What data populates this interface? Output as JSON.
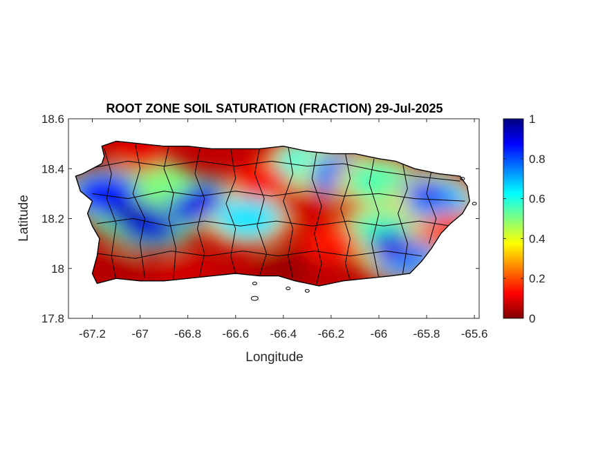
{
  "chart_data": {
    "type": "heatmap",
    "title": "ROOT ZONE SOIL SATURATION (FRACTION) 29-Jul-2025",
    "xlabel": "Longitude",
    "ylabel": "Latitude",
    "xlim": [
      -67.3,
      -65.58
    ],
    "ylim": [
      17.8,
      18.6
    ],
    "xticks": [
      -67.2,
      -67,
      -66.8,
      -66.6,
      -66.4,
      -66.2,
      -66,
      -65.8,
      -65.6
    ],
    "xtick_labels": [
      "-67.2",
      "-67",
      "-66.8",
      "-66.6",
      "-66.4",
      "-66.2",
      "-66",
      "-65.8",
      "-65.6"
    ],
    "yticks": [
      17.8,
      18,
      18.2,
      18.4,
      18.6
    ],
    "ytick_labels": [
      "17.8",
      "18",
      "18.2",
      "18.4",
      "18.6"
    ],
    "colorbar": {
      "colormap": "jet",
      "range": [
        0,
        1
      ],
      "ticks": [
        0,
        0.2,
        0.4,
        0.6,
        0.8,
        1
      ],
      "tick_labels": [
        "0",
        "0.2",
        "0.4",
        "0.6",
        "0.8",
        "1"
      ],
      "colors": [
        "#800000",
        "#ff0000",
        "#ffff00",
        "#00ffff",
        "#0000ff",
        "#000080"
      ]
    },
    "grid": false,
    "region": "Puerto Rico",
    "saturation_regions": [
      {
        "lon": -67.05,
        "lat": 18.22,
        "value": 0.95
      },
      {
        "lon": -66.95,
        "lat": 18.18,
        "value": 0.92
      },
      {
        "lon": -67.15,
        "lat": 18.3,
        "value": 0.85
      },
      {
        "lon": -66.75,
        "lat": 18.26,
        "value": 0.9
      },
      {
        "lon": -66.55,
        "lat": 18.2,
        "value": 0.65
      },
      {
        "lon": -66.9,
        "lat": 18.35,
        "value": 0.5
      },
      {
        "lon": -66.3,
        "lat": 18.42,
        "value": 0.6
      },
      {
        "lon": -66.15,
        "lat": 18.38,
        "value": 0.75
      },
      {
        "lon": -66.0,
        "lat": 18.35,
        "value": 0.55
      },
      {
        "lon": -65.8,
        "lat": 18.3,
        "value": 0.88
      },
      {
        "lon": -65.75,
        "lat": 18.27,
        "value": 0.7
      },
      {
        "lon": -65.95,
        "lat": 18.1,
        "value": 0.9
      },
      {
        "lon": -65.9,
        "lat": 18.05,
        "value": 0.75
      },
      {
        "lon": -66.0,
        "lat": 18.15,
        "value": 0.55
      },
      {
        "lon": -67.1,
        "lat": 18.0,
        "value": 0.05
      },
      {
        "lon": -66.8,
        "lat": 17.98,
        "value": 0.08
      },
      {
        "lon": -66.4,
        "lat": 18.0,
        "value": 0.03
      },
      {
        "lon": -66.3,
        "lat": 18.25,
        "value": 0.08
      },
      {
        "lon": -66.5,
        "lat": 18.35,
        "value": 0.12
      },
      {
        "lon": -67.0,
        "lat": 18.46,
        "value": 0.1
      },
      {
        "lon": -66.2,
        "lat": 18.1,
        "value": 0.15
      },
      {
        "lon": -65.7,
        "lat": 18.15,
        "value": 0.2
      }
    ]
  },
  "colors": {
    "axis": "#262626",
    "boundary": "#000000",
    "background": "#ffffff"
  }
}
